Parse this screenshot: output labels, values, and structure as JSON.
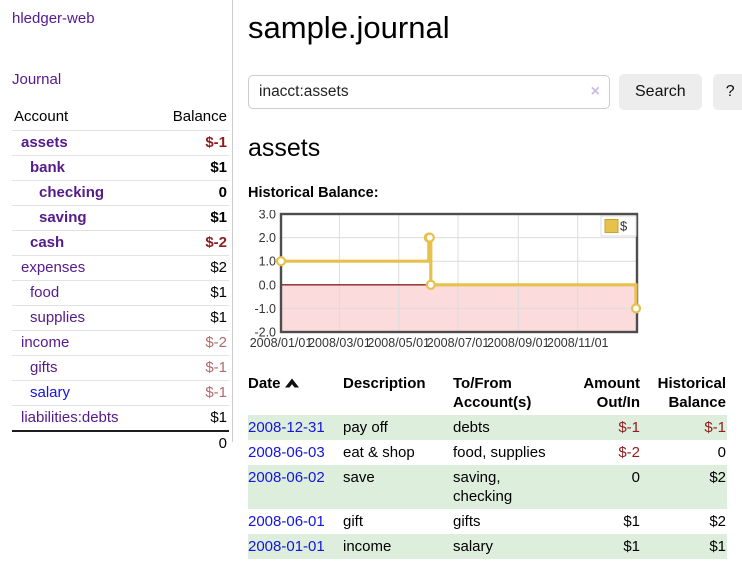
{
  "app": {
    "brand": "hledger-web"
  },
  "nav": {
    "journal": "Journal"
  },
  "sidebar": {
    "columns": {
      "account": "Account",
      "balance": "Balance"
    },
    "accounts": [
      {
        "name": "assets",
        "indent": 0,
        "balance": "$-1",
        "matched": true,
        "unvisited": false
      },
      {
        "name": "bank",
        "indent": 1,
        "balance": "$1",
        "matched": true,
        "unvisited": false
      },
      {
        "name": "checking",
        "indent": 2,
        "balance": "0",
        "matched": true,
        "unvisited": false
      },
      {
        "name": "saving",
        "indent": 2,
        "balance": "$1",
        "matched": true,
        "unvisited": false
      },
      {
        "name": "cash",
        "indent": 1,
        "balance": "$-2",
        "matched": true,
        "unvisited": false
      },
      {
        "name": "expenses",
        "indent": 0,
        "balance": "$2",
        "matched": false,
        "unvisited": false
      },
      {
        "name": "food",
        "indent": 1,
        "balance": "$1",
        "matched": false,
        "unvisited": false
      },
      {
        "name": "supplies",
        "indent": 1,
        "balance": "$1",
        "matched": false,
        "unvisited": false
      },
      {
        "name": "income",
        "indent": 0,
        "balance": "$-2",
        "matched": false,
        "unvisited": false
      },
      {
        "name": "gifts",
        "indent": 1,
        "balance": "$-1",
        "matched": false,
        "unvisited": false
      },
      {
        "name": "salary",
        "indent": 1,
        "balance": "$-1",
        "matched": false,
        "unvisited": true
      },
      {
        "name": "liabilities:debts",
        "indent": 0,
        "balance": "$1",
        "matched": false,
        "unvisited": false
      }
    ],
    "total": "0"
  },
  "header": {
    "title": "sample.journal"
  },
  "search": {
    "value": "inacct:assets",
    "clear_icon": "×",
    "search_label": "Search",
    "help_label": "?"
  },
  "register": {
    "heading": "assets",
    "chart_title": "Historical Balance:",
    "table": {
      "headers": [
        "Date",
        "Description",
        "To/From Account(s)",
        "Amount Out/In",
        "Historical Balance"
      ],
      "sort_column": "Date",
      "sort_direction": "ascending",
      "rows": [
        {
          "date": "2008-12-31",
          "description": "pay off",
          "accounts": "debts",
          "amount": "$-1",
          "balance": "$-1"
        },
        {
          "date": "2008-06-03",
          "description": "eat & shop",
          "accounts": "food, supplies",
          "amount": "$-2",
          "balance": "0"
        },
        {
          "date": "2008-06-02",
          "description": "save",
          "accounts": "saving, checking",
          "amount": "0",
          "balance": "$2"
        },
        {
          "date": "2008-06-01",
          "description": "gift",
          "accounts": "gifts",
          "amount": "$1",
          "balance": "$2"
        },
        {
          "date": "2008-01-01",
          "description": "income",
          "accounts": "salary",
          "amount": "$1",
          "balance": "$1"
        }
      ]
    }
  },
  "chart_data": {
    "type": "line",
    "step": "post",
    "title": "Historical Balance",
    "series": [
      {
        "name": "$",
        "points": [
          [
            "2008-01-01",
            1
          ],
          [
            "2008-06-01",
            2
          ],
          [
            "2008-06-02",
            2
          ],
          [
            "2008-06-03",
            0
          ],
          [
            "2008-12-31",
            -1
          ]
        ]
      }
    ],
    "xmin": "2008-01-01",
    "xmax": "2009-01-01",
    "ylim": [
      -2,
      3
    ],
    "yticks": [
      "3.0",
      "2.0",
      "1.0",
      "0.0",
      "-1.0",
      "-2.0"
    ],
    "xticks": [
      "2008/01/01",
      "2008/03/01",
      "2008/05/01",
      "2008/07/01",
      "2008/09/01",
      "2008/11/01"
    ],
    "grid": true,
    "legend": {
      "label": "$",
      "position": "top-right"
    },
    "colors": {
      "line": "#e6c14c",
      "marker_fill": "#ffffff",
      "negative_fill": "#fbdbdb",
      "zero_line": "#8b2020",
      "grid": "#dcdcdc",
      "border": "#4d4d4d",
      "tick_text": "#333333"
    }
  },
  "colors": {
    "link_visited_purple": "#551a8b",
    "link_blue": "#1414dd",
    "negative_red": "#8f1d1d",
    "negative_soft_red": "#b36a6a",
    "row_stripe_green": "#ddeedd"
  }
}
